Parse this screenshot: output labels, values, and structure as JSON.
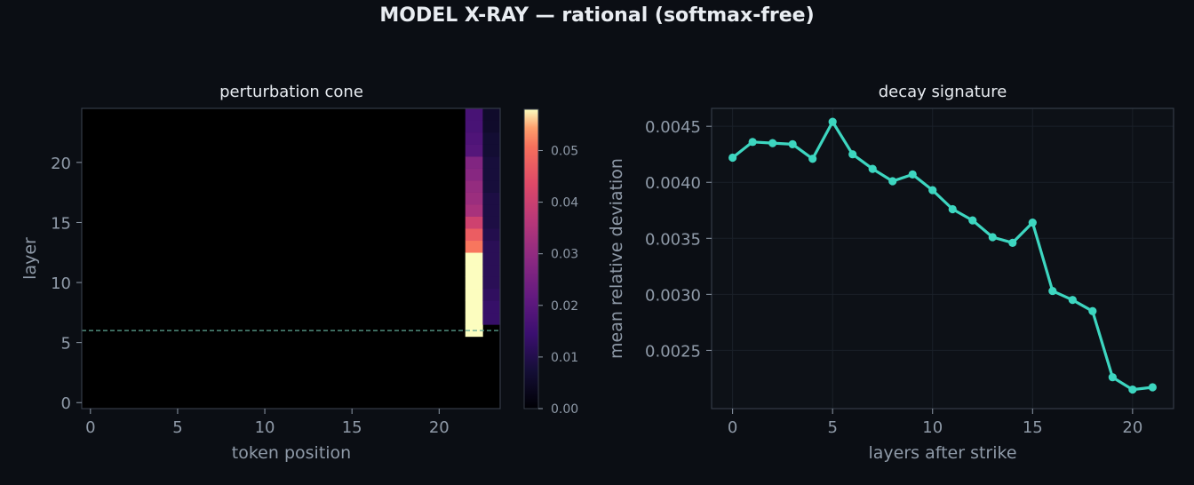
{
  "figure": {
    "suptitle": "MODEL X-RAY — rational  (softmax-free)"
  },
  "colors": {
    "background": "#0b0e14",
    "axes_face": "#0d1117",
    "spine": "#343b46",
    "text": "#e9edf2",
    "muted_text": "#8f9aa8",
    "line": "#3dd6c0",
    "strike_line": "#5fa896"
  },
  "chart_data": [
    {
      "type": "heatmap",
      "title": "perturbation cone",
      "xlabel": "token position",
      "ylabel": "layer",
      "xlim": [
        -0.5,
        23.5
      ],
      "ylim": [
        -0.5,
        24.5
      ],
      "xticks": [
        0,
        5,
        10,
        15,
        20
      ],
      "yticks": [
        0,
        5,
        10,
        15,
        20
      ],
      "strike_layer": 6,
      "colormap": "magma",
      "colorbar": {
        "min": 0,
        "max": 0.058,
        "ticks": [
          0.0,
          0.01,
          0.02,
          0.03,
          0.04,
          0.05
        ],
        "tick_labels": [
          "0.00",
          "0.01",
          "0.02",
          "0.03",
          "0.04",
          "0.05"
        ]
      },
      "nonzero_cells": [
        {
          "x": 22,
          "y": 6,
          "v": 0.058
        },
        {
          "x": 22,
          "y": 7,
          "v": 0.058
        },
        {
          "x": 22,
          "y": 8,
          "v": 0.058
        },
        {
          "x": 22,
          "y": 9,
          "v": 0.058
        },
        {
          "x": 22,
          "y": 10,
          "v": 0.058
        },
        {
          "x": 22,
          "y": 11,
          "v": 0.058
        },
        {
          "x": 22,
          "y": 12,
          "v": 0.058
        },
        {
          "x": 22,
          "y": 13,
          "v": 0.046
        },
        {
          "x": 22,
          "y": 14,
          "v": 0.042
        },
        {
          "x": 22,
          "y": 15,
          "v": 0.036
        },
        {
          "x": 22,
          "y": 16,
          "v": 0.03
        },
        {
          "x": 22,
          "y": 17,
          "v": 0.028
        },
        {
          "x": 22,
          "y": 18,
          "v": 0.027
        },
        {
          "x": 22,
          "y": 19,
          "v": 0.025
        },
        {
          "x": 22,
          "y": 20,
          "v": 0.024
        },
        {
          "x": 22,
          "y": 21,
          "v": 0.017
        },
        {
          "x": 22,
          "y": 22,
          "v": 0.016
        },
        {
          "x": 22,
          "y": 23,
          "v": 0.015
        },
        {
          "x": 22,
          "y": 24,
          "v": 0.015
        },
        {
          "x": 23,
          "y": 7,
          "v": 0.012
        },
        {
          "x": 23,
          "y": 8,
          "v": 0.012
        },
        {
          "x": 23,
          "y": 9,
          "v": 0.011
        },
        {
          "x": 23,
          "y": 10,
          "v": 0.01
        },
        {
          "x": 23,
          "y": 11,
          "v": 0.01
        },
        {
          "x": 23,
          "y": 12,
          "v": 0.01
        },
        {
          "x": 23,
          "y": 13,
          "v": 0.01
        },
        {
          "x": 23,
          "y": 14,
          "v": 0.009
        },
        {
          "x": 23,
          "y": 15,
          "v": 0.008
        },
        {
          "x": 23,
          "y": 16,
          "v": 0.008
        },
        {
          "x": 23,
          "y": 17,
          "v": 0.008
        },
        {
          "x": 23,
          "y": 18,
          "v": 0.007
        },
        {
          "x": 23,
          "y": 19,
          "v": 0.007
        },
        {
          "x": 23,
          "y": 20,
          "v": 0.007
        },
        {
          "x": 23,
          "y": 21,
          "v": 0.006
        },
        {
          "x": 23,
          "y": 22,
          "v": 0.006
        },
        {
          "x": 23,
          "y": 23,
          "v": 0.005
        },
        {
          "x": 23,
          "y": 24,
          "v": 0.005
        }
      ]
    },
    {
      "type": "line",
      "title": "decay signature",
      "xlabel": "layers after strike",
      "ylabel": "mean relative deviation",
      "xlim": [
        -1.05,
        22.05
      ],
      "ylim": [
        0.00198,
        0.00466
      ],
      "xticks": [
        0,
        5,
        10,
        15,
        20
      ],
      "yticks": [
        0.0025,
        0.003,
        0.0035,
        0.004,
        0.0045
      ],
      "ytick_labels": [
        "0.0025",
        "0.0030",
        "0.0035",
        "0.0040",
        "0.0045"
      ],
      "grid": true,
      "x": [
        0,
        1,
        2,
        3,
        4,
        5,
        6,
        7,
        8,
        9,
        10,
        11,
        12,
        13,
        14,
        15,
        16,
        17,
        18,
        19,
        20,
        21
      ],
      "y": [
        0.00422,
        0.00436,
        0.00435,
        0.00434,
        0.00421,
        0.00454,
        0.00425,
        0.00412,
        0.00401,
        0.00407,
        0.00393,
        0.00376,
        0.00366,
        0.00351,
        0.00346,
        0.00364,
        0.00303,
        0.00295,
        0.00285,
        0.00226,
        0.00215,
        0.00217
      ]
    }
  ]
}
